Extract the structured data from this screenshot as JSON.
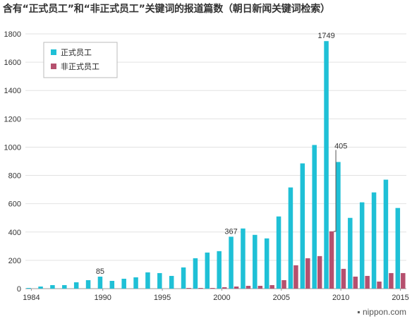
{
  "title": "含有“正式员工”和“非正式员工”关键词的报道篇数（朝日新闻关键词检索）",
  "credit": "nippon.com",
  "colors": {
    "regular": "#1fc0d6",
    "nonregular": "#b5506e",
    "grid": "#e2e2e2",
    "axis": "#999999"
  },
  "chart_data": {
    "type": "bar",
    "title": "含有“正式员工”和“非正式员工”关键词的报道篇数（朝日新闻关键词检索）",
    "categories": [
      1984,
      1985,
      1986,
      1987,
      1988,
      1989,
      1990,
      1991,
      1992,
      1993,
      1994,
      1995,
      1996,
      1997,
      1998,
      1999,
      2000,
      2001,
      2002,
      2003,
      2004,
      2005,
      2006,
      2007,
      2008,
      2009,
      2010,
      2011,
      2012,
      2013,
      2014,
      2015
    ],
    "x_tick_labels": [
      "1984",
      "1990",
      "1995",
      "2000",
      "2005",
      "2010",
      "2015"
    ],
    "y_ticks": [
      0,
      200,
      400,
      600,
      800,
      1000,
      1200,
      1400,
      1600,
      1800
    ],
    "ylim": [
      0,
      1800
    ],
    "grid": true,
    "legend_position": "top-left",
    "series": [
      {
        "name": "正式员工",
        "values": [
          5,
          15,
          25,
          25,
          45,
          60,
          85,
          55,
          70,
          80,
          115,
          110,
          90,
          150,
          215,
          255,
          265,
          367,
          425,
          380,
          355,
          510,
          715,
          885,
          1015,
          1749,
          895,
          500,
          610,
          680,
          770,
          570
        ]
      },
      {
        "name": "非正式员工",
        "values": [
          0,
          0,
          0,
          0,
          0,
          0,
          0,
          0,
          0,
          0,
          0,
          0,
          0,
          5,
          5,
          5,
          10,
          15,
          20,
          20,
          25,
          60,
          165,
          215,
          230,
          405,
          140,
          85,
          90,
          50,
          110,
          110
        ]
      }
    ],
    "annotations": [
      {
        "text": "85",
        "x": 1990,
        "y": 85
      },
      {
        "text": "367",
        "x": 2001,
        "y": 367
      },
      {
        "text": "1749",
        "x": 2009,
        "y": 1749
      },
      {
        "text": "405",
        "x": 2009,
        "y": 405
      }
    ]
  }
}
